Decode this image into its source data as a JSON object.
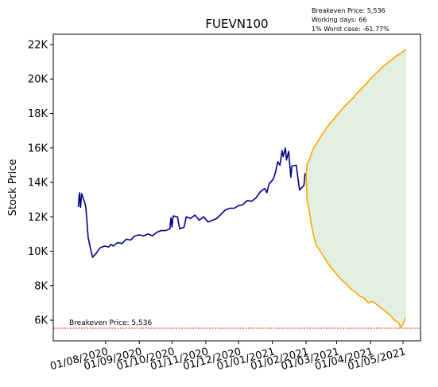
{
  "chart_data": {
    "type": "line",
    "title": "FUEVN100",
    "xlabel": "",
    "ylabel": "Stock Price",
    "x_range": [
      "2020-06-14",
      "2021-05-17"
    ],
    "ylim": [
      4800,
      22600
    ],
    "y_ticks": [
      6000,
      8000,
      10000,
      12000,
      14000,
      16000,
      18000,
      20000,
      22000
    ],
    "y_tick_labels": [
      "6K",
      "8K",
      "10K",
      "12K",
      "14K",
      "16K",
      "18K",
      "20K",
      "22K"
    ],
    "x_ticks": [
      "2020-08-01",
      "2020-09-01",
      "2020-10-01",
      "2020-11-01",
      "2020-12-01",
      "2021-01-01",
      "2021-02-01",
      "2021-03-01",
      "2021-04-01",
      "2021-05-01"
    ],
    "x_tick_labels": [
      "01/08/2020",
      "01/09/2020",
      "01/10/2020",
      "01/11/2020",
      "01/12/2020",
      "01/01/2021",
      "01/02/2021",
      "01/03/2021",
      "01/04/2021",
      "01/05/2021"
    ],
    "grid": false,
    "colors": {
      "historical": "#00008B",
      "projection": "#FFA500",
      "band_fill": "#e3efe0",
      "breakeven": "#ff0000"
    },
    "series": [
      {
        "role": "historical",
        "points": [
          [
            "2020-07-07",
            12600
          ],
          [
            "2020-07-08",
            13400
          ],
          [
            "2020-07-09",
            12550
          ],
          [
            "2020-07-10",
            13350
          ],
          [
            "2020-07-13",
            12800
          ],
          [
            "2020-07-14",
            12500
          ],
          [
            "2020-07-16",
            10800
          ],
          [
            "2020-07-18",
            10200
          ],
          [
            "2020-07-20",
            9650
          ],
          [
            "2020-07-23",
            9850
          ],
          [
            "2020-07-27",
            10200
          ],
          [
            "2020-07-31",
            10300
          ],
          [
            "2020-08-04",
            10250
          ],
          [
            "2020-08-06",
            10400
          ],
          [
            "2020-08-08",
            10300
          ],
          [
            "2020-08-12",
            10500
          ],
          [
            "2020-08-16",
            10450
          ],
          [
            "2020-08-20",
            10700
          ],
          [
            "2020-08-24",
            10650
          ],
          [
            "2020-08-28",
            10900
          ],
          [
            "2020-09-01",
            10950
          ],
          [
            "2020-09-05",
            10900
          ],
          [
            "2020-09-09",
            11000
          ],
          [
            "2020-09-13",
            10900
          ],
          [
            "2020-09-17",
            11100
          ],
          [
            "2020-09-21",
            11200
          ],
          [
            "2020-09-25",
            11200
          ],
          [
            "2020-09-29",
            11300
          ],
          [
            "2020-09-30",
            11950
          ],
          [
            "2020-10-01",
            11400
          ],
          [
            "2020-10-02",
            12050
          ],
          [
            "2020-10-06",
            12000
          ],
          [
            "2020-10-08",
            11300
          ],
          [
            "2020-10-12",
            11400
          ],
          [
            "2020-10-14",
            12000
          ],
          [
            "2020-10-18",
            11900
          ],
          [
            "2020-10-22",
            12100
          ],
          [
            "2020-10-26",
            11800
          ],
          [
            "2020-10-30",
            12000
          ],
          [
            "2020-11-03",
            11700
          ],
          [
            "2020-11-07",
            11800
          ],
          [
            "2020-11-11",
            11900
          ],
          [
            "2020-11-15",
            12150
          ],
          [
            "2020-11-19",
            12400
          ],
          [
            "2020-11-23",
            12500
          ],
          [
            "2020-11-27",
            12500
          ],
          [
            "2020-12-01",
            12650
          ],
          [
            "2020-12-05",
            12700
          ],
          [
            "2020-12-09",
            12950
          ],
          [
            "2020-12-13",
            12900
          ],
          [
            "2020-12-17",
            13100
          ],
          [
            "2020-12-21",
            13450
          ],
          [
            "2020-12-25",
            13650
          ],
          [
            "2020-12-27",
            13400
          ],
          [
            "2020-12-29",
            13900
          ],
          [
            "2021-01-02",
            14200
          ],
          [
            "2021-01-04",
            14600
          ],
          [
            "2021-01-06",
            15200
          ],
          [
            "2021-01-08",
            15000
          ],
          [
            "2021-01-10",
            15850
          ],
          [
            "2021-01-11",
            15500
          ],
          [
            "2021-01-13",
            16000
          ],
          [
            "2021-01-14",
            15300
          ],
          [
            "2021-01-16",
            15800
          ],
          [
            "2021-01-18",
            14300
          ],
          [
            "2021-01-19",
            14950
          ],
          [
            "2021-01-23",
            15000
          ],
          [
            "2021-01-24",
            14500
          ],
          [
            "2021-01-26",
            13550
          ],
          [
            "2021-01-28",
            13700
          ],
          [
            "2021-01-30",
            13800
          ],
          [
            "2021-01-31",
            14500
          ]
        ]
      },
      {
        "role": "projection-upper",
        "points": [
          [
            "2021-02-01",
            14400
          ],
          [
            "2021-02-02",
            15100
          ],
          [
            "2021-02-04",
            15300
          ],
          [
            "2021-02-06",
            15700
          ],
          [
            "2021-02-08",
            16000
          ],
          [
            "2021-02-12",
            16400
          ],
          [
            "2021-02-16",
            16800
          ],
          [
            "2021-02-20",
            17200
          ],
          [
            "2021-02-24",
            17500
          ],
          [
            "2021-02-28",
            17800
          ],
          [
            "2021-03-04",
            18100
          ],
          [
            "2021-03-08",
            18400
          ],
          [
            "2021-03-12",
            18650
          ],
          [
            "2021-03-16",
            18900
          ],
          [
            "2021-03-20",
            19200
          ],
          [
            "2021-03-24",
            19450
          ],
          [
            "2021-03-28",
            19700
          ],
          [
            "2021-04-01",
            20000
          ],
          [
            "2021-04-05",
            20250
          ],
          [
            "2021-04-09",
            20500
          ],
          [
            "2021-04-13",
            20750
          ],
          [
            "2021-04-17",
            20950
          ],
          [
            "2021-04-21",
            21150
          ],
          [
            "2021-04-25",
            21350
          ],
          [
            "2021-04-29",
            21500
          ],
          [
            "2021-05-03",
            21700
          ]
        ]
      },
      {
        "role": "projection-lower",
        "points": [
          [
            "2021-02-01",
            14400
          ],
          [
            "2021-02-02",
            12900
          ],
          [
            "2021-02-04",
            12300
          ],
          [
            "2021-02-06",
            11500
          ],
          [
            "2021-02-08",
            10900
          ],
          [
            "2021-02-10",
            10400
          ],
          [
            "2021-02-14",
            10000
          ],
          [
            "2021-02-18",
            9600
          ],
          [
            "2021-02-22",
            9200
          ],
          [
            "2021-02-26",
            8900
          ],
          [
            "2021-03-02",
            8600
          ],
          [
            "2021-03-06",
            8300
          ],
          [
            "2021-03-10",
            8100
          ],
          [
            "2021-03-14",
            7800
          ],
          [
            "2021-03-18",
            7650
          ],
          [
            "2021-03-22",
            7400
          ],
          [
            "2021-03-26",
            7300
          ],
          [
            "2021-03-30",
            7000
          ],
          [
            "2021-04-03",
            7100
          ],
          [
            "2021-04-07",
            6900
          ],
          [
            "2021-04-11",
            6700
          ],
          [
            "2021-04-15",
            6500
          ],
          [
            "2021-04-19",
            6300
          ],
          [
            "2021-04-23",
            6000
          ],
          [
            "2021-04-27",
            5850
          ],
          [
            "2021-04-29",
            5550
          ],
          [
            "2021-05-01",
            5800
          ],
          [
            "2021-05-03",
            6100
          ]
        ]
      }
    ],
    "breakeven": {
      "value": 5536,
      "label": "Breakeven Price: 5,536"
    },
    "annotations": [
      "Breakeven Price: 5,536",
      "Working days: 66",
      "1% Worst case: -61.77%"
    ]
  }
}
